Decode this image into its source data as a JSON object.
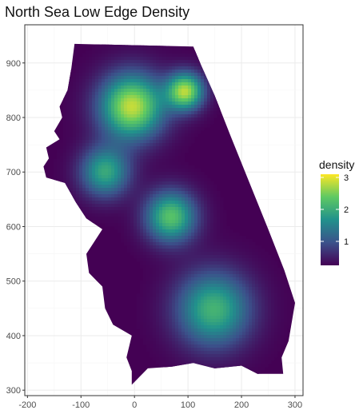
{
  "chart_data": {
    "type": "heatmap",
    "title": "North Sea Low Edge Density",
    "xlabel": "",
    "ylabel": "",
    "xlim": [
      -205,
      315
    ],
    "ylim": [
      290,
      970
    ],
    "x_ticks": [
      -200,
      -100,
      0,
      100,
      200,
      300
    ],
    "y_ticks": [
      300,
      400,
      500,
      600,
      700,
      800,
      900
    ],
    "grid": true,
    "legend": {
      "title": "density",
      "placement": "right",
      "ticks": [
        1,
        2,
        3
      ],
      "range": [
        0.25,
        3.1
      ],
      "colors": [
        "#440154",
        "#3b528b",
        "#21918c",
        "#5ec962",
        "#fde725"
      ]
    },
    "region_outline": [
      [
        -112,
        935
      ],
      [
        110,
        930
      ],
      [
        125,
        895
      ],
      [
        150,
        840
      ],
      [
        180,
        765
      ],
      [
        215,
        680
      ],
      [
        250,
        595
      ],
      [
        280,
        520
      ],
      [
        300,
        460
      ],
      [
        288,
        390
      ],
      [
        275,
        360
      ],
      [
        278,
        330
      ],
      [
        230,
        330
      ],
      [
        200,
        345
      ],
      [
        150,
        340
      ],
      [
        110,
        350
      ],
      [
        70,
        343
      ],
      [
        25,
        340
      ],
      [
        -5,
        310
      ],
      [
        -5,
        335
      ],
      [
        -15,
        360
      ],
      [
        -5,
        400
      ],
      [
        -40,
        420
      ],
      [
        -55,
        450
      ],
      [
        -60,
        490
      ],
      [
        -70,
        500
      ],
      [
        -85,
        515
      ],
      [
        -90,
        550
      ],
      [
        -80,
        565
      ],
      [
        -60,
        595
      ],
      [
        -90,
        615
      ],
      [
        -110,
        645
      ],
      [
        -130,
        680
      ],
      [
        -165,
        690
      ],
      [
        -170,
        710
      ],
      [
        -160,
        725
      ],
      [
        -165,
        745
      ],
      [
        -140,
        760
      ],
      [
        -150,
        775
      ],
      [
        -135,
        800
      ],
      [
        -140,
        820
      ],
      [
        -125,
        850
      ],
      [
        -118,
        890
      ]
    ],
    "density_peaks": [
      {
        "x": -5,
        "y": 820,
        "value": 2.85,
        "spread": 42
      },
      {
        "x": 95,
        "y": 848,
        "value": 2.7,
        "spread": 24
      },
      {
        "x": -55,
        "y": 700,
        "value": 1.95,
        "spread": 32
      },
      {
        "x": 68,
        "y": 618,
        "value": 2.3,
        "spread": 33
      },
      {
        "x": 148,
        "y": 448,
        "value": 2.1,
        "spread": 48
      }
    ],
    "base_value": 0.25
  }
}
